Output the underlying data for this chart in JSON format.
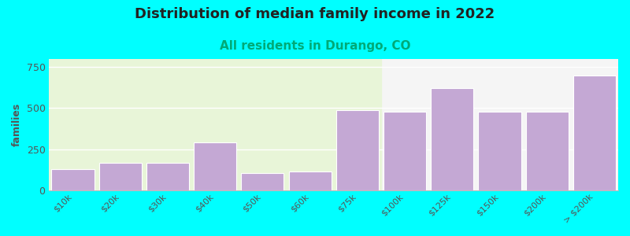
{
  "title": "Distribution of median family income in 2022",
  "subtitle": "All residents in Durango, CO",
  "ylabel": "families",
  "categories": [
    "$10k",
    "$20k",
    "$30k",
    "$40k",
    "$50k",
    "$60k",
    "$75k",
    "$100k",
    "$125k",
    "$150k",
    "$200k",
    "> $200k"
  ],
  "values": [
    130,
    165,
    165,
    290,
    105,
    115,
    490,
    480,
    620,
    480,
    480,
    700
  ],
  "bar_color": "#c4a8d4",
  "bar_edge_color": "#ffffff",
  "bg_color": "#00ffff",
  "plot_bg_color_left": "#e8f5d8",
  "plot_bg_color_right": "#f5f5f5",
  "title_fontsize": 13,
  "subtitle_fontsize": 11,
  "subtitle_color": "#00aa77",
  "ylabel_color": "#555555",
  "tick_color": "#555555",
  "ylim": [
    0,
    800
  ],
  "yticks": [
    0,
    250,
    500,
    750
  ],
  "grid_color": "#ffffff",
  "split_after_index": 6
}
